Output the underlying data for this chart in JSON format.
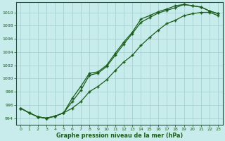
{
  "x": [
    0,
    1,
    2,
    3,
    4,
    5,
    6,
    7,
    8,
    9,
    10,
    11,
    12,
    13,
    14,
    15,
    16,
    17,
    18,
    19,
    20,
    21,
    22,
    23
  ],
  "line1": [
    995.5,
    994.8,
    994.2,
    994.0,
    994.3,
    994.8,
    996.5,
    998.2,
    1000.5,
    1000.8,
    1001.8,
    1003.5,
    1005.2,
    1006.8,
    1008.5,
    1009.2,
    1009.9,
    1010.3,
    1010.7,
    1011.2,
    1011.0,
    1010.8,
    1010.2,
    1009.8
  ],
  "line2": [
    995.5,
    994.8,
    994.2,
    994.0,
    994.3,
    994.8,
    997.0,
    998.8,
    1000.8,
    1001.0,
    1002.0,
    1003.8,
    1005.5,
    1007.0,
    1009.0,
    1009.5,
    1010.1,
    1010.5,
    1011.0,
    1011.2,
    1011.0,
    1010.8,
    1010.2,
    1009.8
  ],
  "line3": [
    995.5,
    994.8,
    994.2,
    994.0,
    994.3,
    994.8,
    995.5,
    996.5,
    998.0,
    998.8,
    999.8,
    1001.2,
    1002.5,
    1003.5,
    1005.0,
    1006.2,
    1007.3,
    1008.3,
    1008.8,
    1009.5,
    1009.8,
    1010.0,
    1010.0,
    1009.5
  ],
  "line_color": "#1a5c1a",
  "bg_color": "#c8ecec",
  "grid_color": "#a0cccc",
  "xlabel": "Graphe pression niveau de la mer (hPa)",
  "ylim": [
    993.0,
    1011.5
  ],
  "xlim_min": -0.5,
  "xlim_max": 23.5,
  "yticks": [
    994,
    996,
    998,
    1000,
    1002,
    1004,
    1006,
    1008,
    1010
  ],
  "xticks": [
    0,
    1,
    2,
    3,
    4,
    5,
    6,
    7,
    8,
    9,
    10,
    11,
    12,
    13,
    14,
    15,
    16,
    17,
    18,
    19,
    20,
    21,
    22,
    23
  ],
  "tick_fontsize": 4.5,
  "xlabel_fontsize": 5.8
}
